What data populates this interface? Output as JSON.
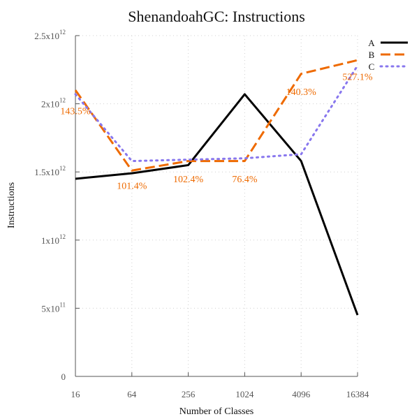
{
  "chart_data": {
    "type": "line",
    "title": "ShenandoahGC: Instructions",
    "xlabel": "Number of Classes",
    "ylabel": "Instructions",
    "x": [
      16,
      64,
      256,
      1024,
      4096,
      16384
    ],
    "x_tick_labels": [
      "16",
      "64",
      "256",
      "1024",
      "4096",
      "16384"
    ],
    "x_scale": "log2",
    "ylim": [
      0,
      2500000000000
    ],
    "y_ticks": [
      {
        "value": 0,
        "base": "0",
        "exp": ""
      },
      {
        "value": 500000000000,
        "base": "5x10",
        "exp": "11"
      },
      {
        "value": 1000000000000,
        "base": "1x10",
        "exp": "12"
      },
      {
        "value": 1500000000000,
        "base": "1.5x10",
        "exp": "12"
      },
      {
        "value": 2000000000000,
        "base": "2x10",
        "exp": "12"
      },
      {
        "value": 2500000000000,
        "base": "2.5x10",
        "exp": "12"
      }
    ],
    "grid": true,
    "legend_position": "top-right",
    "series": [
      {
        "name": "A",
        "color": "#000000",
        "style": "solid",
        "values": [
          1450000000000,
          1490000000000,
          1550000000000,
          2070000000000,
          1580000000000,
          450000000000
        ]
      },
      {
        "name": "B",
        "color": "#ee6a00",
        "style": "dashed",
        "values": [
          2100000000000,
          1510000000000,
          1580000000000,
          1580000000000,
          2220000000000,
          2320000000000
        ]
      },
      {
        "name": "C",
        "color": "#8877ee",
        "style": "dotted",
        "values": [
          2070000000000,
          1580000000000,
          1590000000000,
          1600000000000,
          1630000000000,
          2280000000000
        ]
      }
    ],
    "annotations": [
      {
        "text": "143.5%",
        "x": 16,
        "y": 1950000000000
      },
      {
        "text": "101.4%",
        "x": 64,
        "y": 1400000000000
      },
      {
        "text": "102.4%",
        "x": 256,
        "y": 1450000000000
      },
      {
        "text": "76.4%",
        "x": 1024,
        "y": 1450000000000
      },
      {
        "text": "140.3%",
        "x": 4096,
        "y": 2090000000000
      },
      {
        "text": "527.1%",
        "x": 16384,
        "y": 2200000000000
      }
    ],
    "annotation_color": "#ee6a00"
  }
}
